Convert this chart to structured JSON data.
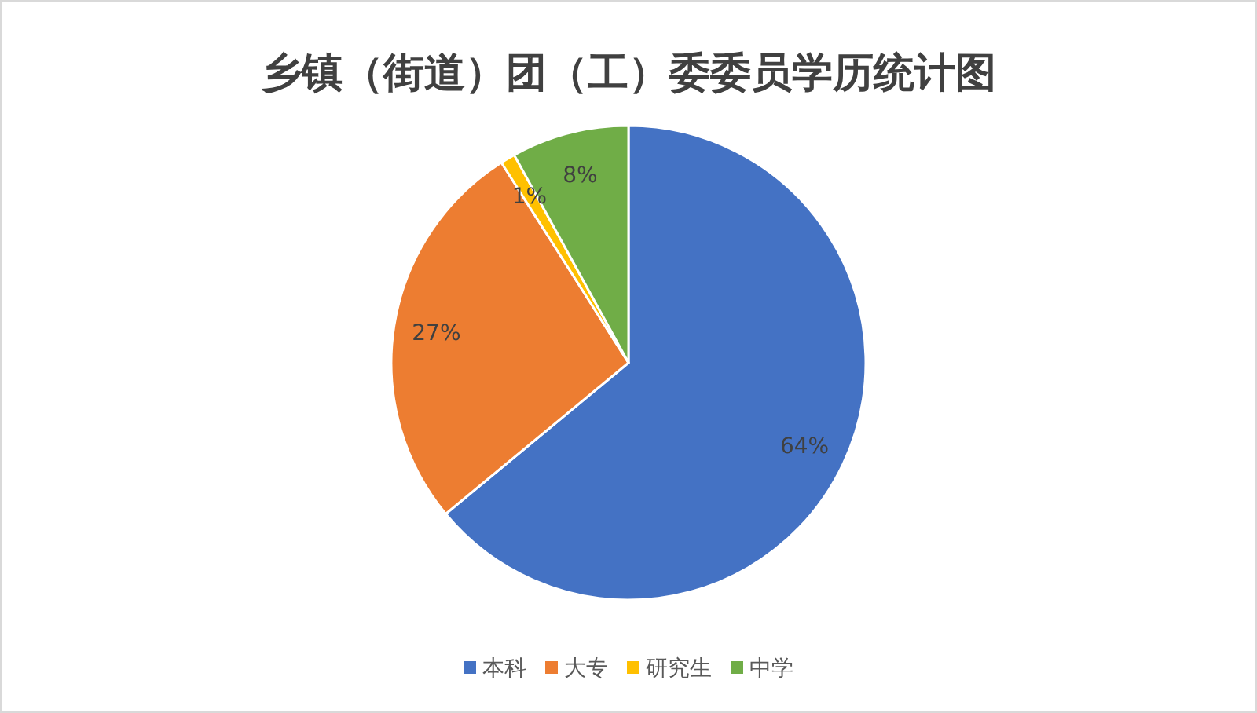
{
  "chart_data": {
    "type": "pie",
    "title": "乡镇（街道）团（工）委委员学历统计图",
    "categories": [
      "本科",
      "大专",
      "研究生",
      "中学"
    ],
    "values": [
      64,
      27,
      1,
      8
    ],
    "value_labels": [
      "64%",
      "27%",
      "1%",
      "8%"
    ],
    "colors": [
      "#4472c4",
      "#ed7d31",
      "#ffc000",
      "#70ad47"
    ],
    "legend": "bottom"
  }
}
